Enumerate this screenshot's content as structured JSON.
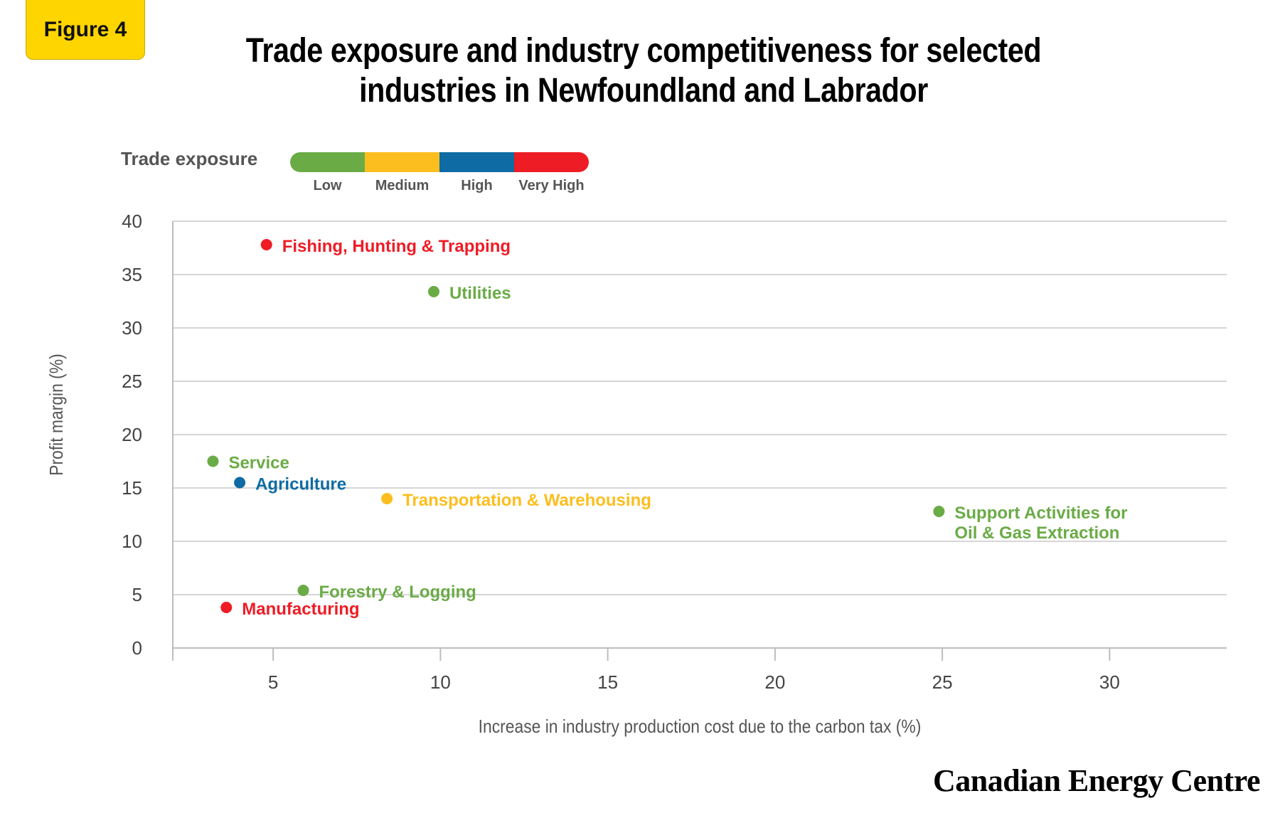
{
  "figure_label": "Figure 4",
  "brand": "Canadian Energy Centre",
  "chart_data": {
    "type": "scatter",
    "title": "Trade exposure and industry competitiveness for selected industries in Newfoundland and Labrador",
    "xlabel": "Increase in industry production cost due to the carbon tax (%)",
    "ylabel": "Profit margin (%)",
    "xlim": [
      2,
      33.5
    ],
    "ylim": [
      0,
      40
    ],
    "xticks": [
      5,
      10,
      15,
      20,
      25,
      30
    ],
    "yticks": [
      0,
      5,
      10,
      15,
      20,
      25,
      30,
      35,
      40
    ],
    "grid": "horizontal",
    "legend": {
      "title": "Trade exposure",
      "placement": "top-left",
      "items": [
        {
          "label": "Low",
          "color": "#6AAB46"
        },
        {
          "label": "Medium",
          "color": "#FCBE1E"
        },
        {
          "label": "High",
          "color": "#0E6BA3"
        },
        {
          "label": "Very High",
          "color": "#EE1C25"
        }
      ]
    },
    "points": [
      {
        "label": [
          "Fishing, Hunting & Trapping"
        ],
        "x": 4.8,
        "y": 37.8,
        "exposure": "Very High",
        "color": "#EE1C25"
      },
      {
        "label": [
          "Utilities"
        ],
        "x": 9.8,
        "y": 33.4,
        "exposure": "Low",
        "color": "#6AAB46"
      },
      {
        "label": [
          "Service"
        ],
        "x": 3.2,
        "y": 17.5,
        "exposure": "Low",
        "color": "#6AAB46"
      },
      {
        "label": [
          "Agriculture"
        ],
        "x": 4.0,
        "y": 15.5,
        "exposure": "High",
        "color": "#0E6BA3"
      },
      {
        "label": [
          "Transportation & Warehousing"
        ],
        "x": 8.4,
        "y": 14.0,
        "exposure": "Medium",
        "color": "#FCBE1E"
      },
      {
        "label": [
          "Support Activities for",
          "Oil & Gas Extraction"
        ],
        "x": 24.9,
        "y": 12.8,
        "exposure": "Low",
        "color": "#6AAB46"
      },
      {
        "label": [
          "Forestry & Logging"
        ],
        "x": 5.9,
        "y": 5.4,
        "exposure": "Low",
        "color": "#6AAB46"
      },
      {
        "label": [
          "Manufacturing"
        ],
        "x": 3.6,
        "y": 3.8,
        "exposure": "Very High",
        "color": "#EE1C25"
      }
    ]
  }
}
